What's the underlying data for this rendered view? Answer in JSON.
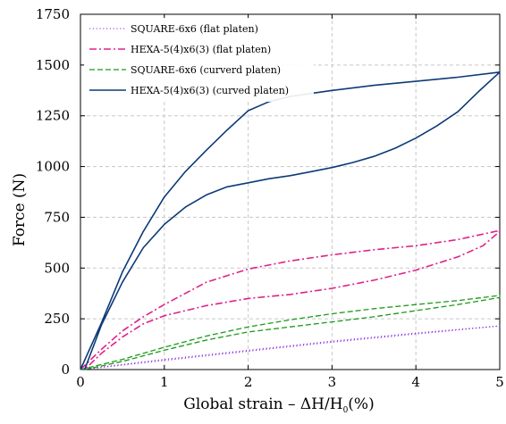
{
  "chart_data": {
    "type": "line",
    "xlabel": "Global strain – ΔH/H",
    "xlabel_sub": "0",
    "xlabel_suffix": "(%)",
    "ylabel": "Force (N)",
    "xlim": [
      0,
      5
    ],
    "ylim": [
      0,
      1750
    ],
    "xticks": [
      0,
      1,
      2,
      3,
      4,
      5
    ],
    "yticks": [
      0,
      250,
      500,
      750,
      1000,
      1250,
      1500,
      1750
    ],
    "grid": true,
    "legend_position": "top-left",
    "series": [
      {
        "name": "SQUARE-6x6 (flat platen)",
        "color": "#8a2be2",
        "dash": "dotted",
        "width": 1.1,
        "loading": [
          [
            0,
            0
          ],
          [
            1,
            50
          ],
          [
            2,
            95
          ],
          [
            3,
            140
          ],
          [
            4,
            180
          ],
          [
            5,
            215
          ]
        ],
        "unloading": [
          [
            5,
            215
          ],
          [
            4,
            175
          ],
          [
            3,
            135
          ],
          [
            2,
            90
          ],
          [
            1,
            45
          ],
          [
            0.02,
            0
          ]
        ]
      },
      {
        "name": "HEXA-5(4)x6(3) (flat platen)",
        "color": "#e0208a",
        "dash": "dashdot",
        "width": 1.6,
        "loading": [
          [
            0,
            0
          ],
          [
            0.25,
            100
          ],
          [
            0.5,
            190
          ],
          [
            0.75,
            260
          ],
          [
            1,
            320
          ],
          [
            1.5,
            430
          ],
          [
            2,
            495
          ],
          [
            2.5,
            535
          ],
          [
            3,
            565
          ],
          [
            3.5,
            590
          ],
          [
            4,
            610
          ],
          [
            4.5,
            640
          ],
          [
            5,
            685
          ]
        ],
        "unloading": [
          [
            5,
            680
          ],
          [
            4.8,
            610
          ],
          [
            4.5,
            555
          ],
          [
            4,
            490
          ],
          [
            3.5,
            440
          ],
          [
            3,
            400
          ],
          [
            2.5,
            370
          ],
          [
            2,
            350
          ],
          [
            1.5,
            315
          ],
          [
            1,
            265
          ],
          [
            0.75,
            225
          ],
          [
            0.5,
            160
          ],
          [
            0.25,
            80
          ],
          [
            0.05,
            0
          ]
        ]
      },
      {
        "name": "SQUARE-6x6 (curverd platen)",
        "color": "#1a9a1a",
        "dash": "dashed",
        "width": 1.3,
        "loading": [
          [
            0,
            0
          ],
          [
            0.5,
            50
          ],
          [
            1,
            110
          ],
          [
            1.5,
            165
          ],
          [
            2,
            210
          ],
          [
            2.5,
            245
          ],
          [
            3,
            275
          ],
          [
            3.5,
            300
          ],
          [
            4,
            320
          ],
          [
            4.5,
            340
          ],
          [
            5,
            365
          ]
        ],
        "unloading": [
          [
            5,
            355
          ],
          [
            4.5,
            320
          ],
          [
            4,
            290
          ],
          [
            3.5,
            260
          ],
          [
            3,
            235
          ],
          [
            2.5,
            210
          ],
          [
            2,
            185
          ],
          [
            1.5,
            145
          ],
          [
            1,
            95
          ],
          [
            0.5,
            40
          ],
          [
            0.05,
            0
          ]
        ]
      },
      {
        "name": "HEXA-5(4)x6(3) (curved platen)",
        "color": "#0d3a78",
        "dash": "solid",
        "width": 1.6,
        "loading": [
          [
            0,
            0
          ],
          [
            0.25,
            230
          ],
          [
            0.5,
            480
          ],
          [
            0.75,
            680
          ],
          [
            1,
            850
          ],
          [
            1.25,
            975
          ],
          [
            1.5,
            1080
          ],
          [
            1.75,
            1180
          ],
          [
            2,
            1275
          ],
          [
            2.25,
            1320
          ],
          [
            2.5,
            1345
          ],
          [
            3,
            1375
          ],
          [
            3.5,
            1400
          ],
          [
            4,
            1420
          ],
          [
            4.5,
            1440
          ],
          [
            5,
            1465
          ]
        ],
        "unloading": [
          [
            5,
            1465
          ],
          [
            4.75,
            1370
          ],
          [
            4.5,
            1270
          ],
          [
            4.25,
            1200
          ],
          [
            4,
            1140
          ],
          [
            3.75,
            1090
          ],
          [
            3.5,
            1050
          ],
          [
            3.25,
            1020
          ],
          [
            3,
            995
          ],
          [
            2.75,
            975
          ],
          [
            2.5,
            955
          ],
          [
            2.25,
            940
          ],
          [
            2,
            920
          ],
          [
            1.75,
            900
          ],
          [
            1.5,
            860
          ],
          [
            1.25,
            800
          ],
          [
            1,
            715
          ],
          [
            0.75,
            600
          ],
          [
            0.5,
            430
          ],
          [
            0.25,
            220
          ],
          [
            0.05,
            0
          ]
        ]
      }
    ]
  }
}
